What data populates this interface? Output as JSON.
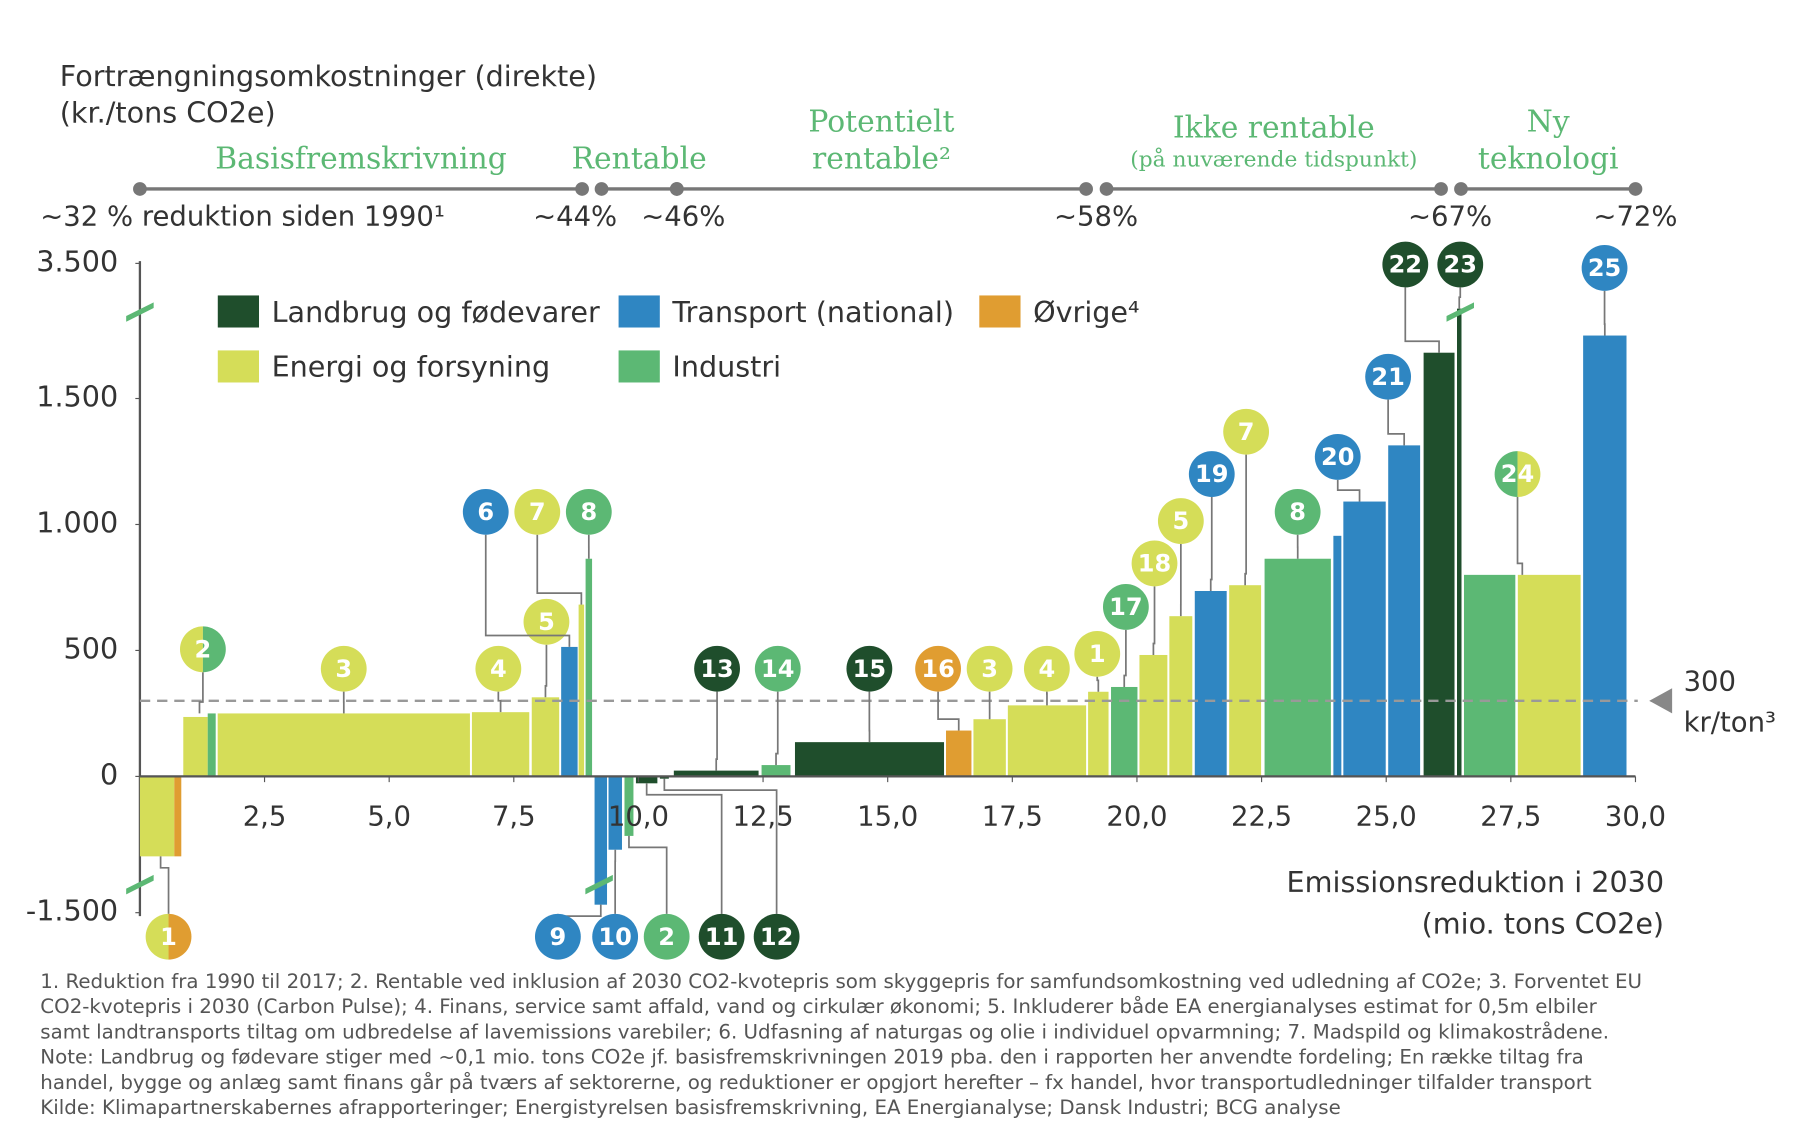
{
  "chart_data": {
    "type": "variable_width_bar",
    "y_title": [
      "Fortrængningsomkostninger (direkte)",
      "(kr./tons CO2e)"
    ],
    "x_title": [
      "Emissionsreduktion i 2030",
      "(mio. tons CO2e)"
    ],
    "xlim": [
      0,
      30
    ],
    "xticks": [
      {
        "value": 2.5,
        "label": "2,5"
      },
      {
        "value": 5,
        "label": "5,0"
      },
      {
        "value": 7.5,
        "label": "7,5"
      },
      {
        "value": 10,
        "label": "10,0"
      },
      {
        "value": 12.5,
        "label": "12,5"
      },
      {
        "value": 15,
        "label": "15,0"
      },
      {
        "value": 17.5,
        "label": "17,5"
      },
      {
        "value": 20,
        "label": "20,0"
      },
      {
        "value": 22.5,
        "label": "22,5"
      },
      {
        "value": 25,
        "label": "25,0"
      },
      {
        "value": 27.5,
        "label": "27,5"
      },
      {
        "value": 30,
        "label": "30,0"
      }
    ],
    "yticks": [
      {
        "value": -1500,
        "label": "-1.500"
      },
      0,
      500,
      {
        "value": 1000,
        "label": "1.000"
      },
      {
        "value": 1500,
        "label": "1.500"
      },
      {
        "value": 3500,
        "label": "3.500"
      }
    ],
    "broken_axis": true,
    "sectors": [
      {
        "name": "Landbrug og fødevarer",
        "color": "#1f4e2c"
      },
      {
        "name": "Transport (national)",
        "color": "#2f86c2"
      },
      {
        "name": "Øvrige⁴",
        "color": "#e09d31"
      },
      {
        "name": "Energi og forsyning",
        "color": "#d5dd58"
      },
      {
        "name": "Industri",
        "color": "#5cb874"
      }
    ],
    "reference": {
      "value": 300,
      "label": [
        "300",
        "kr/ton³"
      ]
    },
    "bars": [
      {
        "label": "1",
        "segments": [
          {
            "sector": 3,
            "x0": 0,
            "x1": 0.69,
            "value": -880
          },
          {
            "sector": 2,
            "x0": 0.69,
            "x1": 0.83,
            "value": -880
          }
        ]
      },
      {
        "label": "2",
        "segments": [
          {
            "sector": 3,
            "x0": 0.87,
            "x1": 1.36,
            "value": 236
          },
          {
            "sector": 4,
            "x0": 1.36,
            "x1": 1.52,
            "value": 250
          }
        ]
      },
      {
        "label": "3",
        "segments": [
          {
            "sector": 3,
            "x0": 1.56,
            "x1": 6.62,
            "value": 250
          }
        ]
      },
      {
        "label": "4",
        "segments": [
          {
            "sector": 3,
            "x0": 6.66,
            "x1": 7.81,
            "value": 255
          }
        ]
      },
      {
        "label": "5",
        "segments": [
          {
            "sector": 3,
            "x0": 7.86,
            "x1": 8.41,
            "value": 314
          }
        ]
      },
      {
        "label": "6",
        "segments": [
          {
            "sector": 1,
            "x0": 8.45,
            "x1": 8.78,
            "value": 514
          }
        ]
      },
      {
        "label": "7",
        "segments": [
          {
            "sector": 3,
            "x0": 8.8,
            "x1": 8.91,
            "value": 682
          }
        ]
      },
      {
        "label": "8",
        "segments": [
          {
            "sector": 4,
            "x0": 8.94,
            "x1": 9.07,
            "value": 864
          }
        ]
      },
      {
        "label": "9",
        "segments": [
          {
            "sector": 1,
            "x0": 9.12,
            "x1": 9.37,
            "value": -1412
          }
        ]
      },
      {
        "label": "10",
        "segments": [
          {
            "sector": 1,
            "x0": 9.4,
            "x1": 9.67,
            "value": -807
          }
        ]
      },
      {
        "label": "2",
        "segments": [
          {
            "sector": 4,
            "x0": 9.72,
            "x1": 9.9,
            "value": -655
          }
        ]
      },
      {
        "label": "11",
        "segments": [
          {
            "sector": 0,
            "x0": 9.95,
            "x1": 10.38,
            "value": -76
          }
        ]
      },
      {
        "label": "12",
        "segments": [
          {
            "sector": 0,
            "x0": 10.43,
            "x1": 10.61,
            "value": -25
          }
        ]
      },
      {
        "label": "13",
        "segments": [
          {
            "sector": 0,
            "x0": 10.71,
            "x1": 12.41,
            "value": 23
          }
        ]
      },
      {
        "label": "14",
        "segments": [
          {
            "sector": 4,
            "x0": 12.47,
            "x1": 13.05,
            "value": 45
          }
        ]
      },
      {
        "label": "15",
        "segments": [
          {
            "sector": 0,
            "x0": 13.14,
            "x1": 16.13,
            "value": 136
          }
        ]
      },
      {
        "label": "16",
        "segments": [
          {
            "sector": 2,
            "x0": 16.17,
            "x1": 16.68,
            "value": 182
          }
        ]
      },
      {
        "label": "3",
        "segments": [
          {
            "sector": 3,
            "x0": 16.72,
            "x1": 17.37,
            "value": 227
          }
        ]
      },
      {
        "label": "4",
        "segments": [
          {
            "sector": 3,
            "x0": 17.41,
            "x1": 18.98,
            "value": 282
          }
        ]
      },
      {
        "label": "1",
        "segments": [
          {
            "sector": 3,
            "x0": 19.02,
            "x1": 19.43,
            "value": 336
          }
        ]
      },
      {
        "label": "17",
        "segments": [
          {
            "sector": 4,
            "x0": 19.48,
            "x1": 20.01,
            "value": 355
          }
        ]
      },
      {
        "label": "18",
        "segments": [
          {
            "sector": 3,
            "x0": 20.05,
            "x1": 20.61,
            "value": 482
          }
        ]
      },
      {
        "label": "5",
        "segments": [
          {
            "sector": 3,
            "x0": 20.65,
            "x1": 21.11,
            "value": 636
          }
        ]
      },
      {
        "label": "19",
        "segments": [
          {
            "sector": 1,
            "x0": 21.16,
            "x1": 21.8,
            "value": 736
          }
        ]
      },
      {
        "label": "7",
        "segments": [
          {
            "sector": 3,
            "x0": 21.85,
            "x1": 22.49,
            "value": 759
          }
        ]
      },
      {
        "label": "8",
        "segments": [
          {
            "sector": 4,
            "x0": 22.56,
            "x1": 23.89,
            "value": 864
          }
        ]
      },
      {
        "label": "20",
        "segments": [
          {
            "sector": 1,
            "x0": 23.94,
            "x1": 24.1,
            "value": 955
          },
          {
            "sector": 1,
            "x0": 24.14,
            "x1": 24.99,
            "value": 1091
          }
        ]
      },
      {
        "label": "21",
        "segments": [
          {
            "sector": 1,
            "x0": 25.04,
            "x1": 25.68,
            "value": 1314
          }
        ]
      },
      {
        "label": "22",
        "segments": [
          {
            "sector": 0,
            "x0": 25.75,
            "x1": 26.37,
            "value": 2178
          }
        ]
      },
      {
        "label": "23",
        "segments": [
          {
            "sector": 0,
            "x0": 26.42,
            "x1": 26.51,
            "value": 2830
          }
        ]
      },
      {
        "label": "24",
        "segments": [
          {
            "sector": 4,
            "x0": 26.56,
            "x1": 27.59,
            "value": 800
          },
          {
            "sector": 3,
            "x0": 27.64,
            "x1": 28.9,
            "value": 800
          }
        ]
      },
      {
        "label": "25",
        "segments": [
          {
            "sector": 1,
            "x0": 28.95,
            "x1": 29.82,
            "value": 2432
          }
        ]
      }
    ],
    "phases": [
      {
        "name": [
          "Basisfremskrivning"
        ],
        "range": [
          0,
          8.87
        ]
      },
      {
        "name": [
          "Rentable"
        ],
        "range": [
          9.26,
          10.77
        ]
      },
      {
        "name": [
          "Potentielt",
          "rentable²"
        ],
        "range": [
          10.77,
          18.98
        ]
      },
      {
        "name": [
          "Ikke rentable",
          "(på nuværende tidspunkt)"
        ],
        "range": [
          19.39,
          26.1
        ]
      },
      {
        "name": [
          "Ny",
          "teknologi"
        ],
        "range": [
          26.5,
          30
        ]
      }
    ],
    "milestones": [
      {
        "x": 0,
        "label": "~32 % reduktion siden 1990¹"
      },
      {
        "x": 8.73,
        "label": "~44%"
      },
      {
        "x": 10.9,
        "label": "~46%"
      },
      {
        "x": 19.18,
        "label": "~58%"
      },
      {
        "x": 26.28,
        "label": "~67%"
      },
      {
        "x": 30,
        "label": "~72%"
      }
    ],
    "footnotes": [
      "1. Reduktion fra 1990 til 2017; 2. Rentable ved inklusion af 2030 CO2-kvotepris som skyggepris for samfundsomkostning ved udledning af CO2e; 3. Forventet EU",
      "CO2-kvotepris i 2030 (Carbon Pulse); 4. Finans, service samt affald, vand og cirkulær økonomi; 5. Inkluderer både EA energianalyses estimat for 0,5m elbiler",
      "samt landtransports tiltag om udbredelse af lavemissions varebiler; 6. Udfasning af naturgas og olie i individuel opvarmning; 7. Madspild og klimakostrådene.",
      "Note: Landbrug og fødevare stiger med ~0,1 mio. tons CO2e jf. basisfremskrivningen 2019 pba. den i rapporten her anvendte fordeling; En række tiltag fra",
      "handel, bygge og anlæg samt finans går på tværs af sektorerne, og reduktioner er opgjort herefter – fx handel, hvor transportudledninger tilfalder transport",
      "Kilde: Klimapartnerskabernes afrapporteringer; Energistyrelsen basisfremskrivning, EA Energianalyse; Dansk Industri; BCG analyse"
    ]
  }
}
